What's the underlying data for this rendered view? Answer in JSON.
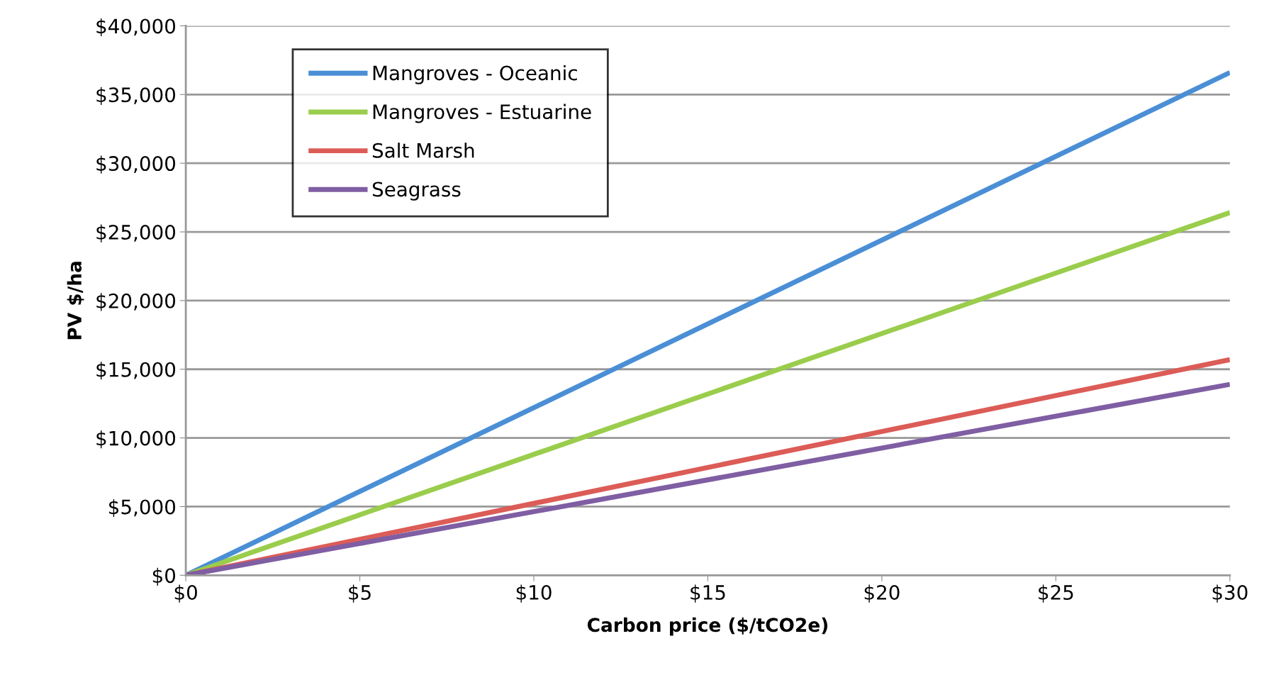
{
  "chart_data": {
    "type": "line",
    "xlabel": "Carbon price ($/tCO2e)",
    "ylabel": "PV $/ha",
    "x": [
      0,
      30
    ],
    "series": [
      {
        "name": "Mangroves - Oceanic",
        "color": "#4a8fd6",
        "values": [
          0,
          36600
        ]
      },
      {
        "name": "Mangroves - Estuarine",
        "color": "#9acd4c",
        "values": [
          0,
          26400
        ]
      },
      {
        "name": "Salt Marsh",
        "color": "#dc5c57",
        "values": [
          0,
          15700
        ]
      },
      {
        "name": "Seagrass",
        "color": "#7f5ea3",
        "values": [
          0,
          13900
        ]
      }
    ],
    "xlim": [
      0,
      30
    ],
    "xticks": [
      {
        "value": 0,
        "label": "$0"
      },
      {
        "value": 5,
        "label": "$5"
      },
      {
        "value": 10,
        "label": "$10"
      },
      {
        "value": 15,
        "label": "$15"
      },
      {
        "value": 20,
        "label": "$20"
      },
      {
        "value": 25,
        "label": "$25"
      },
      {
        "value": 30,
        "label": "$30"
      }
    ],
    "ylim": [
      0,
      40000
    ],
    "yticks": [
      {
        "value": 0,
        "label": "$0"
      },
      {
        "value": 5000,
        "label": "$5,000"
      },
      {
        "value": 10000,
        "label": "$10,000"
      },
      {
        "value": 15000,
        "label": "$15,000"
      },
      {
        "value": 20000,
        "label": "$20,000"
      },
      {
        "value": 25000,
        "label": "$25,000"
      },
      {
        "value": 30000,
        "label": "$30,000"
      },
      {
        "value": 35000,
        "label": "$35,000"
      },
      {
        "value": 40000,
        "label": "$40,000"
      }
    ],
    "grid": "y",
    "legend": "top left",
    "marker": "none",
    "line_style": "solid"
  }
}
